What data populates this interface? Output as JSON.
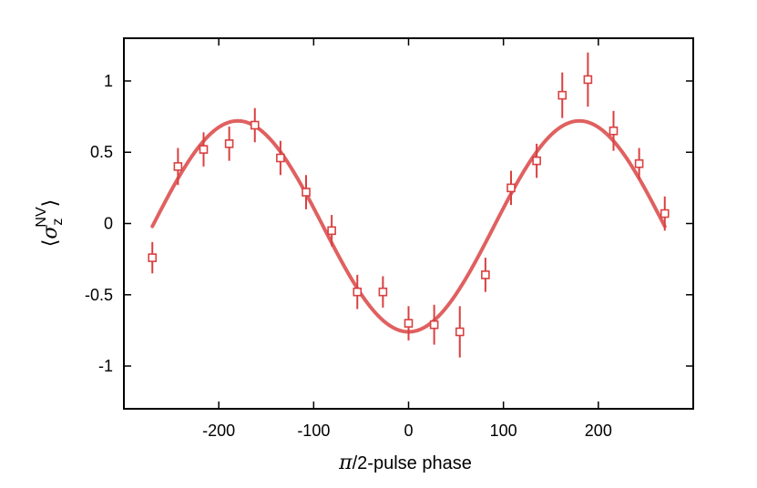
{
  "chart_data": {
    "type": "scatter",
    "title": "",
    "xlabel_symbol": "π",
    "xlabel_rest": "/2-pulse phase",
    "ylabel": {
      "open": "⟨",
      "symbol": "σ",
      "subscript": "z",
      "superscript": "NV",
      "close": "⟩"
    },
    "xlim": [
      -300,
      300
    ],
    "ylim": [
      -1.3,
      1.3
    ],
    "x_ticks": [
      -200,
      -100,
      0,
      100,
      200
    ],
    "x_tick_labels": [
      "-200",
      "-100",
      "0",
      "100",
      "200"
    ],
    "y_ticks": [
      -1,
      -0.5,
      0,
      0.5,
      1
    ],
    "y_tick_labels": [
      "-1",
      "-0.5",
      "0",
      "0.5",
      "1"
    ],
    "grid": false,
    "colors": {
      "series": "#e06060",
      "marker": "#d94040",
      "axis": "#000000"
    },
    "series": [
      {
        "kind": "points",
        "marker": "open-square",
        "x": [
          -270,
          -243,
          -216,
          -189,
          -162,
          -135,
          -108,
          -81,
          -54,
          -27,
          0,
          27,
          54,
          81,
          108,
          135,
          162,
          189,
          216,
          243,
          270
        ],
        "y": [
          -0.24,
          0.4,
          0.52,
          0.56,
          0.69,
          0.46,
          0.22,
          -0.05,
          -0.48,
          -0.48,
          -0.7,
          -0.71,
          -0.76,
          -0.36,
          0.25,
          0.44,
          0.9,
          1.01,
          0.65,
          0.42,
          0.07
        ],
        "yerr": [
          0.11,
          0.13,
          0.12,
          0.12,
          0.12,
          0.12,
          0.12,
          0.11,
          0.12,
          0.11,
          0.12,
          0.14,
          0.18,
          0.12,
          0.12,
          0.12,
          0.16,
          0.19,
          0.14,
          0.11,
          0.12
        ]
      },
      {
        "kind": "fit",
        "function": "offset - amplitude*cos(x*pi/180)",
        "amplitude": 0.74,
        "offset": -0.02,
        "x_range": [
          -270,
          270
        ]
      }
    ]
  }
}
